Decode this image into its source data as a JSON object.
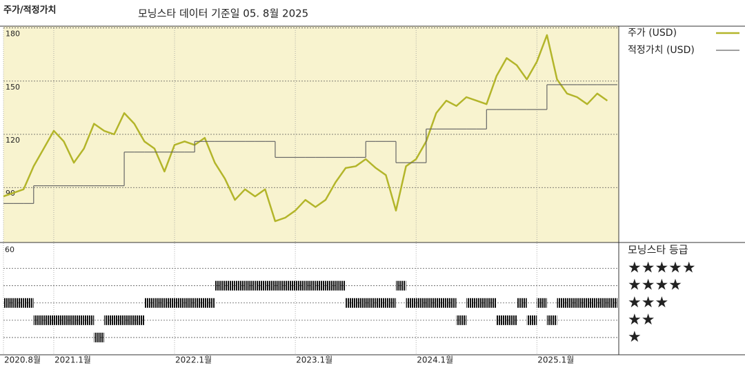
{
  "chart_data": [
    {
      "type": "line",
      "title": "주가/적정가치",
      "subtitle": "모닝스타 데이터 기준일 05. 8월 2025",
      "x": [
        "2020-08",
        "2020-09",
        "2020-10",
        "2020-11",
        "2020-12",
        "2021-01",
        "2021-02",
        "2021-03",
        "2021-04",
        "2021-05",
        "2021-06",
        "2021-07",
        "2021-08",
        "2021-09",
        "2021-10",
        "2021-11",
        "2021-12",
        "2022-01",
        "2022-02",
        "2022-03",
        "2022-04",
        "2022-05",
        "2022-06",
        "2022-07",
        "2022-08",
        "2022-09",
        "2022-10",
        "2022-11",
        "2022-12",
        "2023-01",
        "2023-02",
        "2023-03",
        "2023-04",
        "2023-05",
        "2023-06",
        "2023-07",
        "2023-08",
        "2023-09",
        "2023-10",
        "2023-11",
        "2023-12",
        "2024-01",
        "2024-02",
        "2024-03",
        "2024-04",
        "2024-05",
        "2024-06",
        "2024-07",
        "2024-08",
        "2024-09",
        "2024-10",
        "2024-11",
        "2024-12",
        "2025-01",
        "2025-02",
        "2025-03",
        "2025-04",
        "2025-05",
        "2025-06",
        "2025-07",
        "2025-08"
      ],
      "series": [
        {
          "name": "주가 (USD)",
          "color": "#b3b52a",
          "values": [
            85,
            87,
            89,
            102,
            112,
            122,
            116,
            104,
            112,
            126,
            122,
            120,
            132,
            126,
            116,
            112,
            99,
            114,
            116,
            114,
            118,
            104,
            95,
            83,
            89,
            85,
            89,
            71,
            73,
            77,
            83,
            79,
            83,
            93,
            101,
            102,
            106,
            101,
            97,
            77,
            102,
            106,
            116,
            132,
            139,
            136,
            141,
            139,
            137,
            153,
            163,
            159,
            151,
            161,
            176,
            151,
            143,
            141,
            137,
            143,
            139
          ]
        },
        {
          "name": "적정가치 (USD)",
          "color": "#666666",
          "step": true,
          "values": [
            81,
            81,
            81,
            91,
            91,
            91,
            91,
            91,
            91,
            91,
            91,
            91,
            110,
            110,
            110,
            110,
            110,
            110,
            110,
            116,
            116,
            116,
            116,
            116,
            116,
            116,
            116,
            107,
            107,
            107,
            107,
            107,
            107,
            107,
            107,
            107,
            116,
            116,
            116,
            104,
            104,
            104,
            123,
            123,
            123,
            123,
            123,
            123,
            134,
            134,
            134,
            134,
            134,
            134,
            148,
            148,
            148,
            148,
            148,
            148,
            148
          ]
        }
      ],
      "xlim": [
        "2020-08",
        "2025-09"
      ],
      "xticks": [
        {
          "value": "2020-08",
          "label": "2020.8월"
        },
        {
          "value": "2021-01",
          "label": "2021.1월"
        },
        {
          "value": "2022-01",
          "label": "2022.1월"
        },
        {
          "value": "2023-01",
          "label": "2023.1월"
        },
        {
          "value": "2024-01",
          "label": "2024.1월"
        },
        {
          "value": "2025-01",
          "label": "2025.1월"
        }
      ],
      "ylim": [
        59,
        181
      ],
      "yticks": [
        90,
        120,
        150,
        180
      ],
      "grid": true,
      "legend": "right"
    },
    {
      "type": "rating",
      "title": "모닝스타 등급",
      "corner_label": "60",
      "color": "#111111",
      "x": [
        "2020-08",
        "2020-09",
        "2020-10",
        "2020-11",
        "2020-12",
        "2021-01",
        "2021-02",
        "2021-03",
        "2021-04",
        "2021-05",
        "2021-06",
        "2021-07",
        "2021-08",
        "2021-09",
        "2021-10",
        "2021-11",
        "2021-12",
        "2022-01",
        "2022-02",
        "2022-03",
        "2022-04",
        "2022-05",
        "2022-06",
        "2022-07",
        "2022-08",
        "2022-09",
        "2022-10",
        "2022-11",
        "2022-12",
        "2023-01",
        "2023-02",
        "2023-03",
        "2023-04",
        "2023-05",
        "2023-06",
        "2023-07",
        "2023-08",
        "2023-09",
        "2023-10",
        "2023-11",
        "2023-12",
        "2024-01",
        "2024-02",
        "2024-03",
        "2024-04",
        "2024-05",
        "2024-06",
        "2024-07",
        "2024-08",
        "2024-09",
        "2024-10",
        "2024-11",
        "2024-12",
        "2025-01",
        "2025-02",
        "2025-03",
        "2025-04",
        "2025-05",
        "2025-06",
        "2025-07",
        "2025-08"
      ],
      "values": [
        3,
        3,
        3,
        2,
        2,
        2,
        2,
        2,
        2,
        1,
        2,
        2,
        2,
        2,
        3,
        3,
        3,
        3,
        3,
        3,
        3,
        4,
        4,
        4,
        4,
        4,
        4,
        4,
        4,
        4,
        4,
        4,
        4,
        4,
        3,
        3,
        3,
        3,
        3,
        4,
        3,
        3,
        3,
        3,
        3,
        2,
        3,
        3,
        3,
        2,
        2,
        3,
        2,
        3,
        2,
        3,
        3,
        3,
        3,
        3,
        3
      ],
      "xlim": [
        "2020-08",
        "2025-09"
      ],
      "ylim": [
        0,
        6.5
      ],
      "yticks": [
        {
          "value": 5,
          "label": "★★★★★"
        },
        {
          "value": 4,
          "label": "★★★★"
        },
        {
          "value": 3,
          "label": "★★★"
        },
        {
          "value": 2,
          "label": "★★"
        },
        {
          "value": 1,
          "label": "★"
        }
      ]
    }
  ]
}
